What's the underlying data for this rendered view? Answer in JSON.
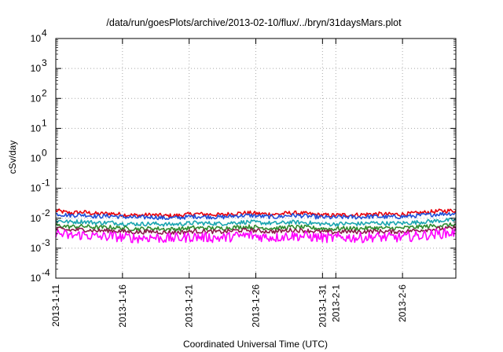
{
  "chart_data": {
    "type": "line",
    "title": "/data/run/goesPlots/archive/2013-02-10/flux/../bryn/31daysMars.plot",
    "xlabel": "Coordinated Universal Time (UTC)",
    "ylabel": "cSv/day",
    "yscale": "log",
    "ylim": [
      0.0001,
      10000
    ],
    "xlim": [
      "2013-01-11",
      "2013-02-10"
    ],
    "grid": true,
    "y_ticks": [
      {
        "base": "10",
        "exp": "4"
      },
      {
        "base": "10",
        "exp": "3"
      },
      {
        "base": "10",
        "exp": "2"
      },
      {
        "base": "10",
        "exp": "1"
      },
      {
        "base": "10",
        "exp": "0"
      },
      {
        "base": "10",
        "exp": "-1"
      },
      {
        "base": "10",
        "exp": "-2"
      },
      {
        "base": "10",
        "exp": "-3"
      },
      {
        "base": "10",
        "exp": "-4"
      }
    ],
    "x_ticks": [
      {
        "label": "2013-1-11",
        "date": "2013-01-11"
      },
      {
        "label": "2013-1-16",
        "date": "2013-01-16"
      },
      {
        "label": "2013-1-21",
        "date": "2013-01-21"
      },
      {
        "label": "2013-1-26",
        "date": "2013-01-26"
      },
      {
        "label": "2013-1-31",
        "date": "2013-01-31"
      },
      {
        "label": "2013-2-1",
        "date": "2013-02-01"
      },
      {
        "label": "2013-2-6",
        "date": "2013-02-06"
      }
    ],
    "series": [
      {
        "color": "#e8000b",
        "values": [
          0.018,
          0.015,
          0.016,
          0.014,
          0.0145,
          0.013,
          0.0125,
          0.013,
          0.012,
          0.0125,
          0.014,
          0.0135,
          0.013,
          0.0145,
          0.015,
          0.014,
          0.0135,
          0.015,
          0.0145,
          0.013,
          0.0125,
          0.013,
          0.013,
          0.014,
          0.0135,
          0.0135,
          0.0145,
          0.016,
          0.0175,
          0.018
        ]
      },
      {
        "color": "#1f4fd8",
        "values": [
          0.014,
          0.0125,
          0.013,
          0.0115,
          0.012,
          0.011,
          0.0105,
          0.011,
          0.01,
          0.0105,
          0.0115,
          0.0112,
          0.0108,
          0.012,
          0.0125,
          0.0115,
          0.011,
          0.0125,
          0.012,
          0.011,
          0.0105,
          0.011,
          0.0108,
          0.0115,
          0.011,
          0.0112,
          0.012,
          0.013,
          0.014,
          0.0145
        ]
      },
      {
        "color": "#1aa5b0",
        "values": [
          0.0085,
          0.0075,
          0.0078,
          0.007,
          0.0072,
          0.0066,
          0.0064,
          0.0066,
          0.0062,
          0.0064,
          0.007,
          0.0068,
          0.0066,
          0.0072,
          0.0075,
          0.007,
          0.0067,
          0.0074,
          0.0072,
          0.0066,
          0.0063,
          0.0066,
          0.0065,
          0.007,
          0.0067,
          0.0068,
          0.0072,
          0.0078,
          0.0084,
          0.0087
        ]
      },
      {
        "color": "#2e8b2e",
        "values": [
          0.0058,
          0.0052,
          0.0054,
          0.0049,
          0.005,
          0.0046,
          0.0044,
          0.0046,
          0.0043,
          0.0044,
          0.0048,
          0.0047,
          0.0046,
          0.005,
          0.0052,
          0.0048,
          0.0046,
          0.0051,
          0.005,
          0.0046,
          0.0044,
          0.0046,
          0.0045,
          0.0048,
          0.0046,
          0.0047,
          0.005,
          0.0054,
          0.0058,
          0.006
        ]
      },
      {
        "color": "#8b1a4a",
        "values": [
          0.0045,
          0.004,
          0.0042,
          0.0038,
          0.0039,
          0.0036,
          0.0034,
          0.0036,
          0.0033,
          0.0034,
          0.0037,
          0.0036,
          0.0035,
          0.0039,
          0.004,
          0.0037,
          0.0036,
          0.004,
          0.0039,
          0.0036,
          0.0034,
          0.0036,
          0.0035,
          0.0037,
          0.0036,
          0.0036,
          0.0039,
          0.0042,
          0.0045,
          0.0046
        ]
      },
      {
        "color": "#ff00ff",
        "values": [
          0.0032,
          0.0026,
          0.0028,
          0.0024,
          0.0025,
          0.0023,
          0.0022,
          0.0023,
          0.0021,
          0.0022,
          0.0024,
          0.0023,
          0.0022,
          0.0025,
          0.0027,
          0.0024,
          0.0023,
          0.0026,
          0.0025,
          0.0023,
          0.0022,
          0.0023,
          0.0022,
          0.0024,
          0.0023,
          0.0023,
          0.0025,
          0.0028,
          0.0031,
          0.0033
        ]
      }
    ]
  }
}
